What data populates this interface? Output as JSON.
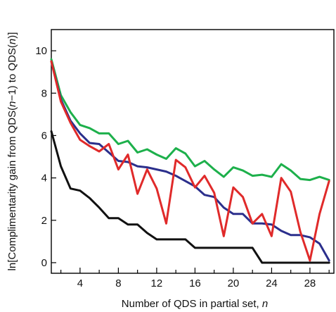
{
  "chart_data": {
    "type": "line",
    "xlabel": "Number of QDS in partial set, ",
    "xlabel_var": "n",
    "ylabel_parts": [
      "ln[Complimentarity gain from QDS(",
      "n",
      "−1) to QDS(",
      "n",
      ")]"
    ],
    "xlim": [
      1,
      30.5
    ],
    "ylim": [
      -0.5,
      11
    ],
    "x_ticks_major": [
      4,
      8,
      12,
      16,
      20,
      24,
      28
    ],
    "x_ticks_minor": [
      2,
      6,
      10,
      14,
      18,
      22,
      26,
      30
    ],
    "y_ticks": [
      0,
      2,
      4,
      6,
      8,
      10
    ],
    "grid": false,
    "x": [
      1,
      2,
      3,
      4,
      5,
      6,
      7,
      8,
      9,
      10,
      11,
      12,
      13,
      14,
      15,
      16,
      17,
      18,
      19,
      20,
      21,
      22,
      23,
      24,
      25,
      26,
      27,
      28,
      29,
      30
    ],
    "series": [
      {
        "color": "#1db04b",
        "values": [
          9.6,
          7.9,
          7.1,
          6.5,
          6.35,
          6.1,
          6.1,
          5.6,
          5.75,
          5.2,
          5.35,
          5.1,
          4.9,
          5.4,
          5.15,
          4.55,
          4.8,
          4.4,
          4.05,
          4.5,
          4.35,
          4.1,
          4.15,
          4.05,
          4.65,
          4.35,
          3.95,
          3.9,
          4.05,
          3.9
        ]
      },
      {
        "color": "#2b2f8c",
        "values": [
          9.5,
          7.7,
          6.7,
          6.1,
          5.65,
          5.6,
          5.2,
          4.8,
          4.75,
          4.55,
          4.5,
          4.4,
          4.3,
          4.1,
          3.85,
          3.6,
          3.2,
          3.1,
          2.6,
          2.3,
          2.3,
          1.85,
          1.85,
          1.8,
          1.5,
          1.3,
          1.3,
          1.2,
          0.9,
          0.1
        ]
      },
      {
        "color": "#e02a2a",
        "values": [
          9.5,
          7.6,
          6.6,
          5.8,
          5.5,
          5.25,
          5.6,
          4.4,
          5.1,
          3.25,
          4.4,
          3.5,
          1.85,
          4.85,
          4.5,
          3.55,
          4.1,
          3.3,
          1.25,
          3.55,
          3.1,
          1.85,
          2.3,
          1.25,
          4.0,
          3.35,
          1.45,
          0.1,
          2.3,
          3.85
        ]
      },
      {
        "color": "#111111",
        "values": [
          6.2,
          4.55,
          3.5,
          3.4,
          3.05,
          2.6,
          2.1,
          2.1,
          1.8,
          1.8,
          1.4,
          1.1,
          1.1,
          1.1,
          1.1,
          0.7,
          0.7,
          0.7,
          0.7,
          0.7,
          0.7,
          0.7,
          0.0,
          0.0,
          0.0,
          0.0,
          0.0,
          0.0,
          0.0,
          0.0
        ]
      }
    ]
  }
}
